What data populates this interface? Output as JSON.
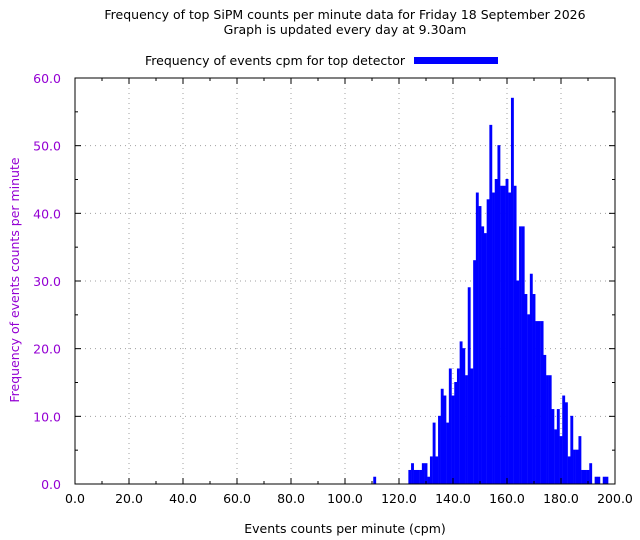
{
  "chart_data": {
    "type": "bar",
    "title": "Frequency of top SiPM counts per minute data for Friday 18 September 2026",
    "subtitle": "Graph is updated every day at 9.30am",
    "legend": {
      "label": "Frequency of events cpm for top detector",
      "placement": "top-center"
    },
    "xlabel": "Events counts per minute (cpm)",
    "ylabel": "Frequency of events counts per minute",
    "xlim": [
      0,
      200
    ],
    "ylim": [
      0,
      60
    ],
    "xticks": [
      "0.0",
      "20.0",
      "40.0",
      "60.0",
      "80.0",
      "100.0",
      "120.0",
      "140.0",
      "160.0",
      "180.0",
      "200.0"
    ],
    "yticks": [
      "0.0",
      "10.0",
      "20.0",
      "30.0",
      "40.0",
      "50.0",
      "60.0"
    ],
    "grid": true,
    "colors": {
      "bar": "#0000ff",
      "axis_text": "#9400d3",
      "grid": "#a0a0a0"
    },
    "x": [
      111,
      124,
      125,
      126,
      127,
      128,
      129,
      130,
      131,
      132,
      133,
      134,
      135,
      136,
      137,
      138,
      139,
      140,
      141,
      142,
      143,
      144,
      145,
      146,
      147,
      148,
      149,
      150,
      151,
      152,
      153,
      154,
      155,
      156,
      157,
      158,
      159,
      160,
      161,
      162,
      163,
      164,
      165,
      166,
      167,
      168,
      169,
      170,
      171,
      172,
      173,
      174,
      175,
      176,
      177,
      178,
      179,
      180,
      181,
      182,
      183,
      184,
      185,
      186,
      187,
      188,
      189,
      190,
      191,
      193,
      194,
      196,
      197
    ],
    "values": [
      1,
      2,
      3,
      2,
      2,
      2,
      3,
      3,
      1,
      4,
      9,
      4,
      10,
      14,
      13,
      9,
      17,
      13,
      15,
      17,
      21,
      20,
      16,
      29,
      17,
      33,
      43,
      41,
      38,
      37,
      42,
      53,
      43,
      45,
      50,
      44,
      44,
      45,
      43,
      57,
      44,
      30,
      38,
      38,
      28,
      25,
      31,
      28,
      24,
      24,
      24,
      19,
      16,
      16,
      11,
      8,
      11,
      7,
      13,
      12,
      4,
      10,
      5,
      5,
      7,
      2,
      2,
      2,
      3,
      1,
      1,
      1,
      1
    ]
  }
}
